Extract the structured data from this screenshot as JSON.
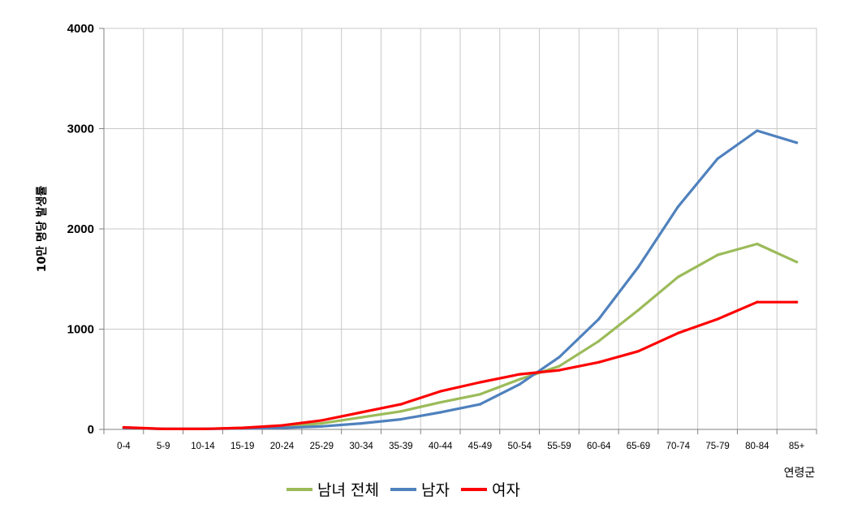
{
  "chart_data": {
    "type": "line",
    "title": "",
    "ylabel": "10만 명당 발생률",
    "xlabel": "연령군",
    "ylim": [
      0,
      4000
    ],
    "yticks": [
      0,
      1000,
      2000,
      3000,
      4000
    ],
    "grid": true,
    "legend_position": "bottom-center",
    "categories": [
      "0-4",
      "5-9",
      "10-14",
      "15-19",
      "20-24",
      "25-29",
      "30-34",
      "35-39",
      "40-44",
      "45-49",
      "50-54",
      "55-59",
      "60-64",
      "65-69",
      "70-74",
      "75-79",
      "80-84",
      "85+"
    ],
    "series": [
      {
        "name": "남녀 전체",
        "color": "#9bbb59",
        "values": [
          15,
          5,
          5,
          15,
          30,
          60,
          120,
          180,
          270,
          350,
          500,
          630,
          880,
          1190,
          1520,
          1740,
          1850,
          1670
        ]
      },
      {
        "name": "남자",
        "color": "#4f81bd",
        "values": [
          15,
          5,
          5,
          10,
          15,
          30,
          60,
          100,
          170,
          250,
          450,
          720,
          1100,
          1620,
          2220,
          2700,
          2980,
          2860
        ]
      },
      {
        "name": "여자",
        "color": "#ff0000",
        "values": [
          20,
          5,
          5,
          15,
          40,
          90,
          170,
          250,
          380,
          470,
          550,
          590,
          670,
          780,
          960,
          1100,
          1270,
          1270
        ]
      }
    ]
  }
}
